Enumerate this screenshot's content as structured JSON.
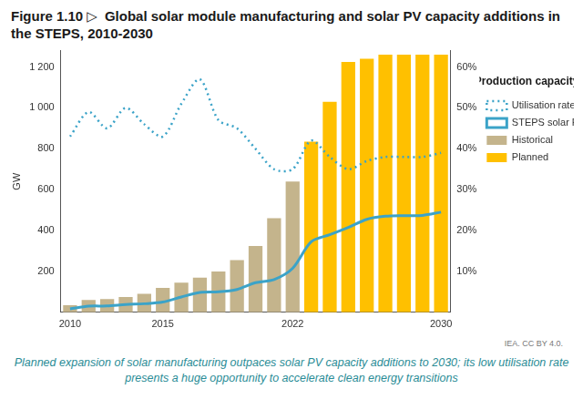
{
  "chart_data": {
    "type": "bar",
    "figure_label": "Figure 1.10 ▷",
    "title": "Global solar module manufacturing and solar PV capacity additions in the STEPS, 2010-2030",
    "y_label": "GW",
    "legend_title": "Production capacity",
    "source": "IEA. CC BY 4.0.",
    "caption": "Planned expansion of solar manufacturing outpaces solar PV capacity additions to 2030; its low utilisation rate presents a huge opportunity to accelerate clean energy transitions",
    "categories": [
      "2010",
      null,
      null,
      null,
      null,
      "2015",
      null,
      null,
      null,
      null,
      null,
      null,
      "2022",
      null,
      null,
      null,
      null,
      null,
      null,
      null,
      "2030"
    ],
    "ylim": [
      0,
      1280
    ],
    "yticks": [
      200,
      400,
      600,
      800,
      {
        "value": 1000,
        "label": "1 000"
      },
      {
        "value": 1200,
        "label": "1 200"
      }
    ],
    "y2lim": [
      0,
      64
    ],
    "y2ticks": [
      {
        "value": 10,
        "label": "10%"
      },
      {
        "value": 20,
        "label": "20%"
      },
      {
        "value": 30,
        "label": "30%"
      },
      {
        "value": 40,
        "label": "40%"
      },
      {
        "value": 50,
        "label": "50%"
      },
      {
        "value": 60,
        "label": "60%"
      }
    ],
    "grid": false,
    "legend": "right",
    "series": [
      {
        "name": "Historical",
        "type": "bar",
        "color": "#c4b48c",
        "values": [
          35,
          60,
          65,
          75,
          90,
          120,
          145,
          170,
          200,
          255,
          325,
          460,
          640,
          null,
          null,
          null,
          null,
          null,
          null,
          null,
          null
        ]
      },
      {
        "name": "Planned",
        "type": "bar",
        "color": "#ffc000",
        "values": [
          null,
          null,
          null,
          null,
          null,
          null,
          null,
          null,
          null,
          null,
          null,
          null,
          null,
          835,
          1030,
          1225,
          1240,
          1260,
          1260,
          1260,
          1260
        ]
      },
      {
        "name": "Utilisation rate (right axis)",
        "type": "line",
        "axis": "y2",
        "color": "#3ba3c8",
        "line_style": "dotted",
        "marker": "none",
        "values": [
          43,
          49,
          45,
          50,
          46,
          43,
          51,
          57,
          47,
          45,
          40,
          35,
          35,
          42,
          38,
          35,
          37,
          38,
          38,
          38,
          39
        ]
      },
      {
        "name": "STEPS solar PV capacity additions",
        "type": "line",
        "color": "#3ba3c8",
        "line_style": "solid",
        "marker": "none",
        "values": [
          17,
          30,
          31,
          38,
          42,
          50,
          75,
          97,
          100,
          112,
          145,
          160,
          215,
          345,
          380,
          415,
          455,
          470,
          473,
          474,
          490
        ]
      }
    ]
  }
}
